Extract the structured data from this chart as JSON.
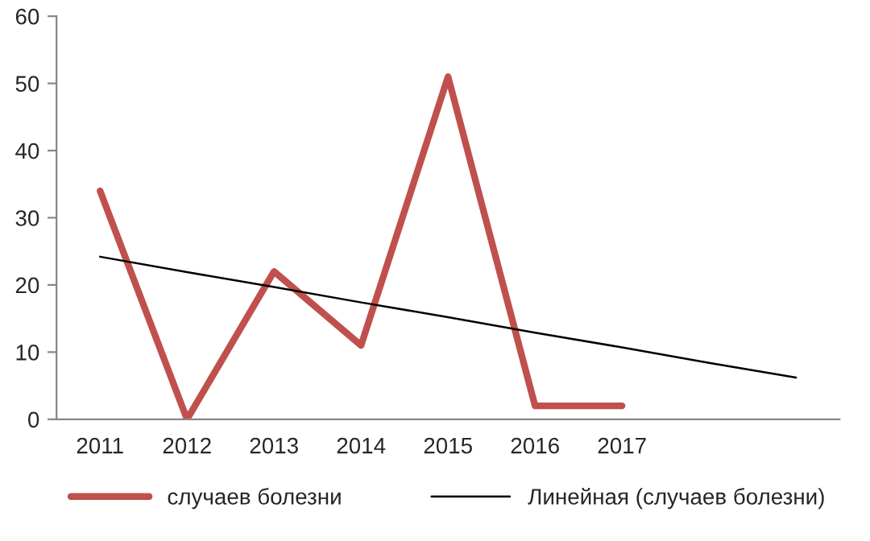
{
  "chart_data": {
    "type": "line",
    "categories": [
      "2011",
      "2012",
      "2013",
      "2014",
      "2015",
      "2016",
      "2017",
      null,
      null
    ],
    "series": [
      {
        "name": "случаев болезни",
        "color": "#c0504d",
        "values": [
          34,
          0,
          22,
          11,
          51,
          2,
          2,
          null,
          null
        ]
      },
      {
        "name": "Линейная (случаев болезни)",
        "color": "#000000",
        "values": [
          24.2,
          21.9,
          19.7,
          17.4,
          15.2,
          12.9,
          10.7,
          8.4,
          6.2
        ]
      }
    ],
    "ylim": [
      0,
      60
    ],
    "yticks": [
      0,
      10,
      20,
      30,
      40,
      50,
      60
    ],
    "grid": false,
    "legend": "bottom",
    "marker": "none",
    "line_style": "solid"
  }
}
